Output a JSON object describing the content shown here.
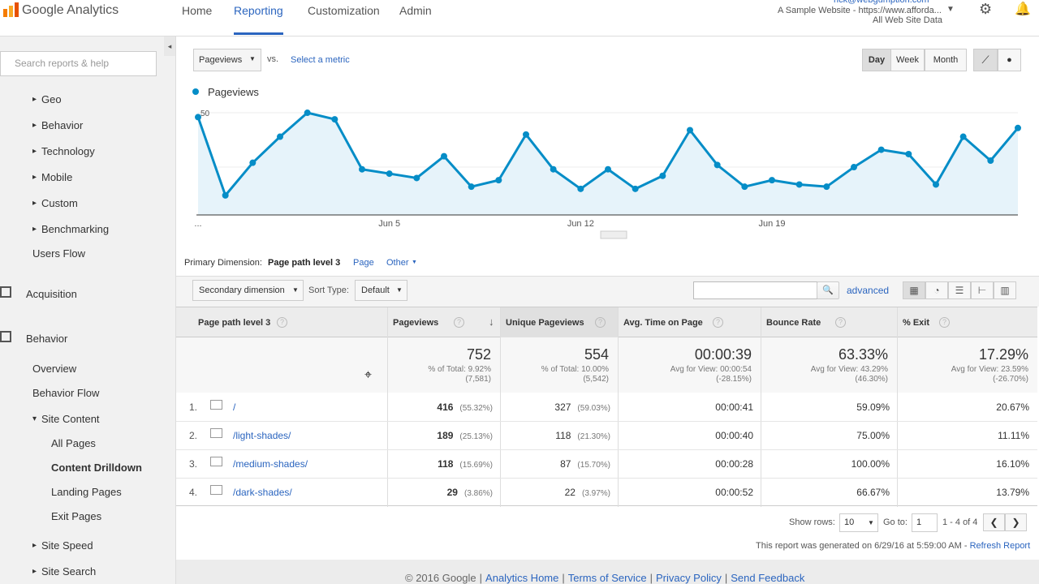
{
  "header": {
    "logo": "Google Analytics",
    "nav": [
      "Home",
      "Reporting",
      "Customization",
      "Admin"
    ],
    "email": "rick@webgumption.com",
    "property": "A Sample Website - https://www.afforda...",
    "view": "All Web Site Data"
  },
  "sidebar": {
    "search_placeholder": "Search reports & help",
    "items": [
      "Geo",
      "Behavior",
      "Technology",
      "Mobile",
      "Custom",
      "Benchmarking",
      "Users Flow",
      "Acquisition",
      "Behavior",
      "Overview",
      "Behavior Flow",
      "Site Content",
      "All Pages",
      "Content Drilldown",
      "Landing Pages",
      "Exit Pages",
      "Site Speed",
      "Site Search"
    ]
  },
  "toolbar": {
    "metric": "Pageviews",
    "vs": "vs.",
    "select_metric": "Select a metric",
    "periods": [
      "Day",
      "Week",
      "Month"
    ]
  },
  "chart_data": {
    "type": "line",
    "categories": [
      "...",
      null,
      null,
      null,
      null,
      null,
      null,
      "Jun 5",
      null,
      null,
      null,
      null,
      null,
      null,
      "Jun 12",
      null,
      null,
      null,
      null,
      null,
      null,
      "Jun 19",
      null,
      null,
      null,
      null,
      null,
      null,
      null,
      null,
      null
    ],
    "series": [
      {
        "name": "Pageviews",
        "color": "#058dc7",
        "values": [
          48,
          12,
          27,
          39,
          50,
          47,
          24,
          22,
          20,
          30,
          16,
          19,
          40,
          24,
          15,
          24,
          15,
          21,
          42,
          26,
          16,
          19,
          17,
          16,
          25,
          33,
          31,
          17,
          39,
          28,
          43
        ]
      }
    ],
    "ylim": [
      3,
      53
    ],
    "yticks": [
      25,
      50
    ],
    "grid": true
  },
  "dimension": {
    "label": "Primary Dimension:",
    "options": [
      "Page path level 3",
      "Page",
      "Other"
    ]
  },
  "controls": {
    "secondary": "Secondary dimension",
    "sort_label": "Sort Type:",
    "sort": "Default",
    "advanced": "advanced"
  },
  "table": {
    "columns": [
      "Page path level 3",
      "Pageviews",
      "Unique Pageviews",
      "Avg. Time on Page",
      "Bounce Rate",
      "% Exit"
    ],
    "totals": [
      {
        "value": "752",
        "line1": "% of Total: 9.92%",
        "line2": "(7,581)"
      },
      {
        "value": "554",
        "line1": "% of Total: 10.00%",
        "line2": "(5,542)"
      },
      {
        "value": "00:00:39",
        "line1": "Avg for View: 00:00:54",
        "line2": "(-28.15%)"
      },
      {
        "value": "63.33%",
        "line1": "Avg for View: 43.29%",
        "line2": "(46.30%)"
      },
      {
        "value": "17.29%",
        "line1": "Avg for View: 23.59%",
        "line2": "(-26.70%)"
      }
    ],
    "rows": [
      {
        "index": "1.",
        "page": "/",
        "pageviews": "416",
        "pageviews_pct": "(55.32%)",
        "unique": "327",
        "unique_pct": "(59.03%)",
        "time": "00:00:41",
        "bounce": "59.09%",
        "exit": "20.67%"
      },
      {
        "index": "2.",
        "page": "/light-shades/",
        "pageviews": "189",
        "pageviews_pct": "(25.13%)",
        "unique": "118",
        "unique_pct": "(21.30%)",
        "time": "00:00:40",
        "bounce": "75.00%",
        "exit": "11.11%"
      },
      {
        "index": "3.",
        "page": "/medium-shades/",
        "pageviews": "118",
        "pageviews_pct": "(15.69%)",
        "unique": "87",
        "unique_pct": "(15.70%)",
        "time": "00:00:28",
        "bounce": "100.00%",
        "exit": "16.10%"
      },
      {
        "index": "4.",
        "page": "/dark-shades/",
        "pageviews": "29",
        "pageviews_pct": "(3.86%)",
        "unique": "22",
        "unique_pct": "(3.97%)",
        "time": "00:00:52",
        "bounce": "66.67%",
        "exit": "13.79%"
      }
    ]
  },
  "pagination": {
    "show_rows": "Show rows:",
    "rows": "10",
    "goto": "Go to:",
    "page": "1",
    "range": "1 - 4 of 4"
  },
  "generated": "This report was generated on 6/29/16 at 5:59:00 AM - ",
  "refresh": "Refresh Report",
  "footer": [
    "© 2016 Google",
    "Analytics Home",
    "Terms of Service",
    "Privacy Policy",
    "Send Feedback"
  ]
}
